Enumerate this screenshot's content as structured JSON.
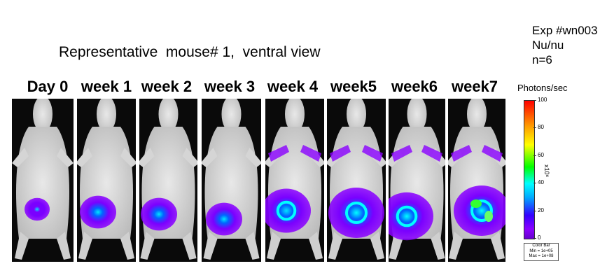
{
  "experiment": {
    "id_line": "Exp #wn003",
    "strain": "Nu/nu",
    "n": "n=6"
  },
  "subtitle": "Representative  mouse# 1,  ventral view",
  "panels": [
    {
      "label": "Day 0"
    },
    {
      "label": "week 1"
    },
    {
      "label": "week 2"
    },
    {
      "label": "week 3"
    },
    {
      "label": "week 4"
    },
    {
      "label": "week5"
    },
    {
      "label": "week6"
    },
    {
      "label": "week7"
    }
  ],
  "colorbar": {
    "units": "Photons/sec",
    "ticks": [
      "100",
      "80",
      "60",
      "40",
      "20",
      "0"
    ],
    "scale": "x10⁶",
    "box": {
      "title": "Color Bar",
      "min": "Min = 1e+05",
      "max": "Max = 1e+08"
    },
    "colors": [
      "#ff0000",
      "#ffff00",
      "#00ff00",
      "#00ffff",
      "#0000ff",
      "#8a00ff"
    ]
  }
}
